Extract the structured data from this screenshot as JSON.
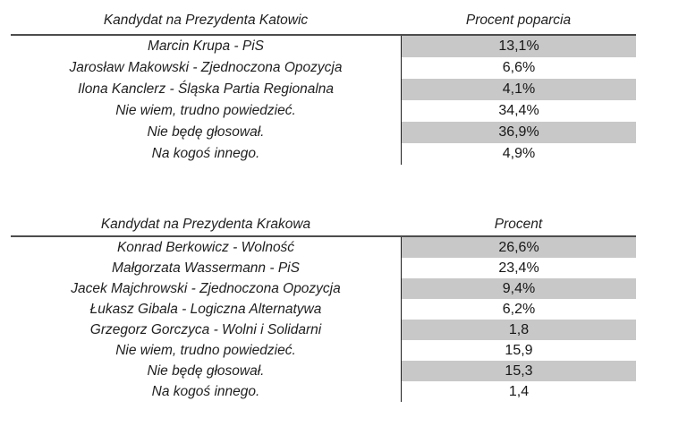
{
  "styles": {
    "background": "#ffffff",
    "text_color": "#1f1f1f",
    "shaded_cell_color": "#c8c8c8",
    "header_rule_color": "#4d4d4d",
    "column_divider_color": "#1c1c1c"
  },
  "chart_data": [
    {
      "type": "table",
      "columns": [
        "Kandydat na Prezydenta Katowic",
        "Procent poparcia"
      ],
      "rows": [
        [
          "Marcin Krupa - PiS",
          "13,1%"
        ],
        [
          "Jarosław Makowski - Zjednoczona Opozycja",
          "6,6%"
        ],
        [
          "Ilona Kanclerz - Śląska Partia Regionalna",
          "4,1%"
        ],
        [
          "Nie wiem, trudno powiedzieć.",
          "34,4%"
        ],
        [
          "Nie będę głosował.",
          "36,9%"
        ],
        [
          "Na kogoś innego.",
          "4,9%"
        ]
      ],
      "layout": {
        "shading": "alternating rows, first row shaded, percent column only",
        "value_column_divider": true,
        "header_rule": true
      }
    },
    {
      "type": "table",
      "columns": [
        "Kandydat na Prezydenta Krakowa",
        "Procent"
      ],
      "rows": [
        [
          "Konrad Berkowicz - Wolność",
          "26,6%"
        ],
        [
          "Małgorzata Wassermann - PiS",
          "23,4%"
        ],
        [
          "Jacek Majchrowski - Zjednoczona Opozycja",
          "9,4%"
        ],
        [
          "Łukasz Gibala - Logiczna Alternatywa",
          "6,2%"
        ],
        [
          "Grzegorz Gorczyca - Wolni i Solidarni",
          "1,8"
        ],
        [
          "Nie wiem, trudno powiedzieć.",
          "15,9"
        ],
        [
          "Nie będę głosował.",
          "15,3"
        ],
        [
          "Na kogoś innego.",
          "1,4"
        ]
      ],
      "layout": {
        "shading": "alternating rows, first row shaded, percent column only",
        "value_column_divider": true,
        "header_rule": true
      }
    }
  ]
}
